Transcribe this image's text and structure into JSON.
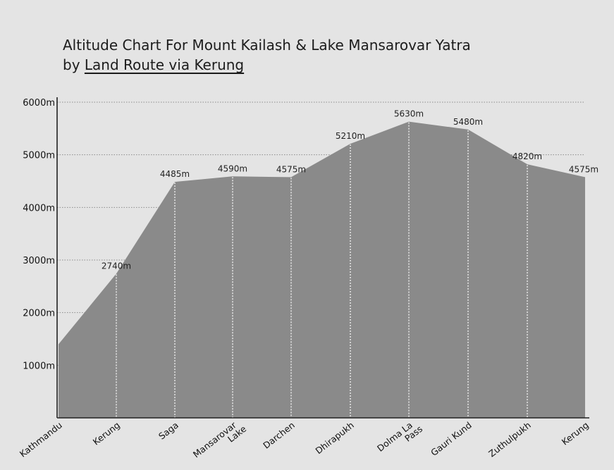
{
  "title": {
    "line1": "Altitude Chart For Mount Kailash & Lake Mansarovar Yatra",
    "line2_prefix": "by ",
    "line2_underlined": "Land Route via Kerung"
  },
  "chart_data": {
    "type": "area",
    "categories": [
      [
        "Kathmandu"
      ],
      [
        "Kerung"
      ],
      [
        "Saga"
      ],
      [
        "Mansarovar",
        "Lake"
      ],
      [
        "Darchen"
      ],
      [
        "Dhirapukh"
      ],
      [
        "Dolma La",
        "Pass"
      ],
      [
        "Gauri Kund"
      ],
      [
        "Zuthulpukh"
      ],
      [
        "Kerung"
      ]
    ],
    "values": [
      1400,
      2740,
      4485,
      4590,
      4575,
      5210,
      5630,
      5480,
      4820,
      4575
    ],
    "value_labels": [
      "",
      "2740m",
      "4485m",
      "4590m",
      "4575m",
      "5210m",
      "5630m",
      "5480m",
      "4820m",
      "4575m"
    ],
    "yticks": [
      {
        "value": 1000,
        "label": "1000m"
      },
      {
        "value": 2000,
        "label": "2000m"
      },
      {
        "value": 3000,
        "label": "3000m"
      },
      {
        "value": 4000,
        "label": "4000m"
      },
      {
        "value": 5000,
        "label": "5000m"
      },
      {
        "value": 6000,
        "label": "6000m"
      }
    ],
    "ylim": [
      0,
      6000
    ],
    "grid": true,
    "xlabel": "",
    "ylabel": "",
    "colors": {
      "area": "#8a8a8a",
      "grid": "#8a8a8a",
      "axis": "#222222",
      "drop_line": "#ffffff",
      "background": "#e4e4e4"
    }
  }
}
